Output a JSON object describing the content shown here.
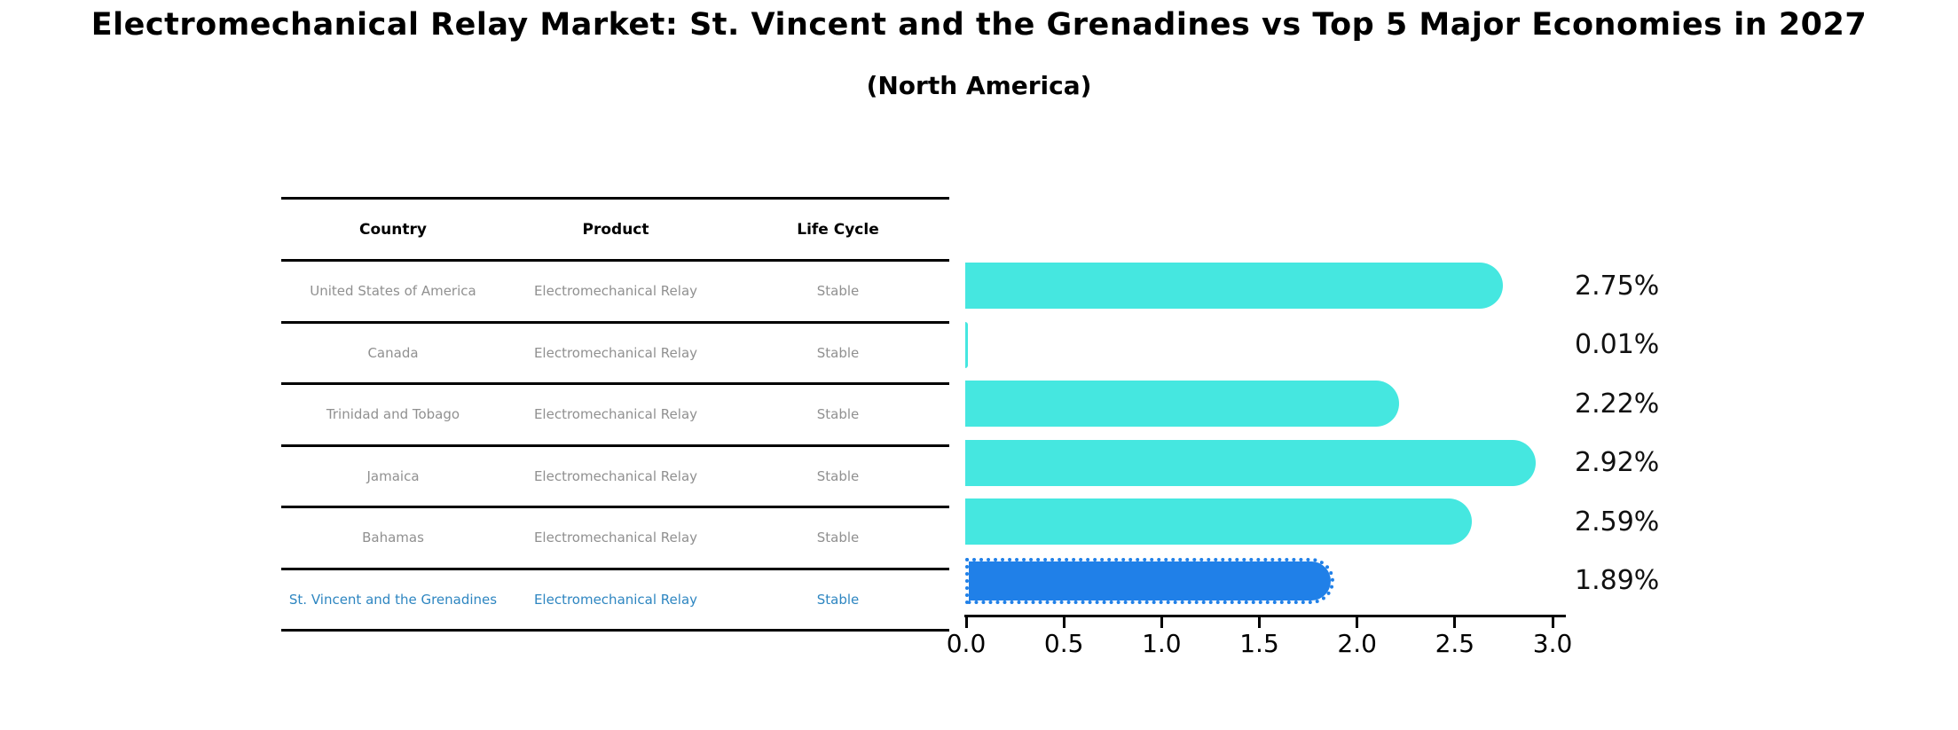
{
  "title": "Electromechanical Relay Market: St. Vincent and the Grenadines vs Top 5 Major Economies in 2027",
  "subtitle": "(North America)",
  "table": {
    "headers": [
      "Country",
      "Product",
      "Life Cycle"
    ],
    "rows": [
      [
        "United States of America",
        "Electromechanical Relay",
        "Stable"
      ],
      [
        "Canada",
        "Electromechanical Relay",
        "Stable"
      ],
      [
        "Trinidad and Tobago",
        "Electromechanical Relay",
        "Stable"
      ],
      [
        "Jamaica",
        "Electromechanical Relay",
        "Stable"
      ],
      [
        "Bahamas",
        "Electromechanical Relay",
        "Stable"
      ],
      [
        "St. Vincent and the Grenadines",
        "Electromechanical Relay",
        "Stable"
      ]
    ],
    "highlight_row_index": 5,
    "text_color": "#909090",
    "highlight_text_color": "#2e86c1"
  },
  "chart_data": {
    "type": "bar",
    "orientation": "horizontal",
    "title": "Electromechanical Relay Market: St. Vincent and the Grenadines vs Top 5 Major Economies in 2027 (North America)",
    "categories": [
      "United States of America",
      "Canada",
      "Trinidad and Tobago",
      "Jamaica",
      "Bahamas",
      "St. Vincent and the Grenadines"
    ],
    "values": [
      2.75,
      0.01,
      2.22,
      2.92,
      2.59,
      1.89
    ],
    "value_labels": [
      "2.75%",
      "0.01%",
      "2.22%",
      "2.92%",
      "2.59%",
      "1.89%"
    ],
    "xlim": [
      0.0,
      3.0
    ],
    "x_ticks": [
      0.0,
      0.5,
      1.0,
      1.5,
      2.0,
      2.5,
      3.0
    ],
    "x_tick_labels": [
      "0.0",
      "0.5",
      "1.0",
      "1.5",
      "2.0",
      "2.5",
      "3.0"
    ],
    "bar_color": "#45e7e0",
    "highlight_bar_color": "#2080e8",
    "highlight_border_color": "#2080e8",
    "highlight_index": 5,
    "grid": false,
    "legend": false
  }
}
